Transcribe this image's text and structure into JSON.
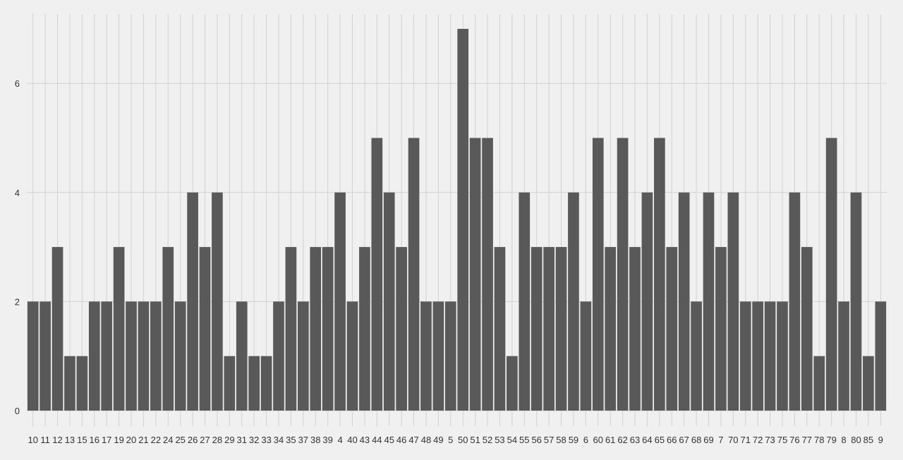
{
  "chart_data": {
    "type": "bar",
    "categories": [
      "10",
      "11",
      "12",
      "13",
      "15",
      "16",
      "17",
      "19",
      "20",
      "21",
      "22",
      "24",
      "25",
      "26",
      "27",
      "28",
      "29",
      "31",
      "32",
      "33",
      "34",
      "35",
      "37",
      "38",
      "39",
      "4",
      "40",
      "43",
      "44",
      "45",
      "46",
      "47",
      "48",
      "49",
      "5",
      "50",
      "51",
      "52",
      "53",
      "54",
      "55",
      "56",
      "57",
      "58",
      "59",
      "6",
      "60",
      "61",
      "62",
      "63",
      "64",
      "65",
      "66",
      "67",
      "68",
      "69",
      "7",
      "70",
      "71",
      "72",
      "73",
      "75",
      "76",
      "77",
      "78",
      "79",
      "8",
      "80",
      "85",
      "9"
    ],
    "values": [
      2,
      2,
      3,
      1,
      1,
      2,
      2,
      3,
      2,
      2,
      2,
      3,
      2,
      4,
      3,
      4,
      1,
      2,
      1,
      1,
      2,
      3,
      2,
      3,
      3,
      4,
      2,
      3,
      5,
      4,
      3,
      5,
      2,
      2,
      2,
      7,
      5,
      5,
      3,
      1,
      4,
      3,
      3,
      3,
      4,
      2,
      5,
      3,
      5,
      3,
      4,
      5,
      3,
      4,
      2,
      4,
      3,
      4,
      2,
      2,
      2,
      2,
      4,
      3,
      1,
      5,
      2,
      4,
      1,
      2
    ],
    "yticks": [
      "0",
      "2",
      "4",
      "6"
    ],
    "ylim": [
      0,
      7.4
    ],
    "grid": true,
    "xlabel": "",
    "ylabel": "",
    "title": "",
    "colors": {
      "bar": "#595959",
      "background": "#f0f0f0",
      "grid": "#d2d2d2"
    }
  }
}
